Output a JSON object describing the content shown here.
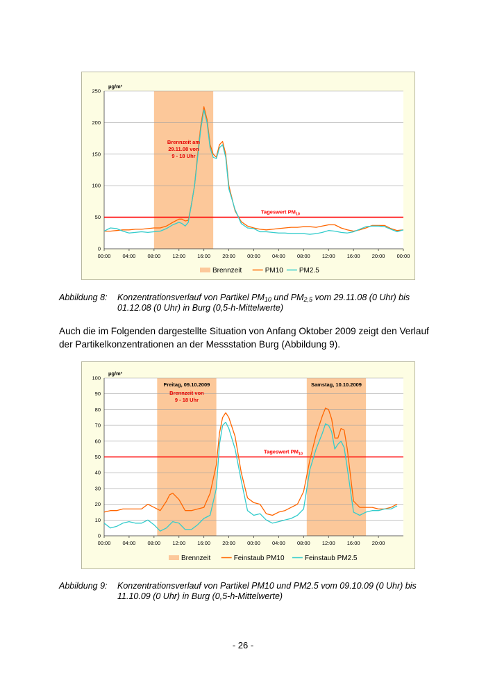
{
  "chart_data": [
    {
      "type": "line",
      "id": "chart1",
      "unit_label": "µg/m³",
      "ylim": [
        0,
        250
      ],
      "yticks": [
        "0",
        "50",
        "100",
        "150",
        "200",
        "250"
      ],
      "x_tick_labels": [
        "00:00",
        "04:00",
        "08:00",
        "12:00",
        "16:00",
        "20:00",
        "00:00",
        "04:00",
        "08:00",
        "12:00",
        "16:00",
        "20:00",
        "00:00"
      ],
      "x_range_hours": [
        0,
        48
      ],
      "band": {
        "from_hour": 8,
        "to_hour": 17.5,
        "color": "#fcc89a",
        "name": "Brennzeit"
      },
      "annotation": "Brennzeit am 29.11.08 von 9 - 18 Uhr",
      "annotation_lines": [
        "Brennzeit am",
        "29.11.08 von",
        "9 - 18 Uhr"
      ],
      "threshold": {
        "value": 50,
        "label": "Tageswert PM",
        "label_sub": "10",
        "color": "#ff0000"
      },
      "legend": [
        "Brennzeit",
        "PM10",
        "PM2.5"
      ],
      "series": [
        {
          "name": "PM10",
          "color": "#ff6600",
          "x": [
            0,
            1,
            2,
            3,
            4,
            5,
            6,
            7,
            8,
            9,
            10,
            11,
            12,
            12.5,
            13,
            13.5,
            14,
            14.5,
            15,
            15.5,
            16,
            16.5,
            17,
            17.5,
            18,
            18.5,
            19,
            19.5,
            20,
            21,
            22,
            23,
            24,
            25,
            26,
            27,
            28,
            29,
            30,
            31,
            32,
            33,
            34,
            35,
            36,
            37,
            38,
            39,
            40,
            41,
            42,
            43,
            44,
            45,
            46,
            47,
            48
          ],
          "values": [
            28,
            28,
            29,
            30,
            30,
            31,
            31,
            32,
            33,
            33,
            36,
            42,
            47,
            47,
            44,
            45,
            70,
            100,
            150,
            195,
            225,
            205,
            165,
            150,
            145,
            165,
            170,
            150,
            100,
            60,
            43,
            36,
            33,
            31,
            30,
            31,
            32,
            33,
            34,
            34,
            35,
            35,
            34,
            36,
            38,
            38,
            33,
            30,
            28,
            30,
            33,
            37,
            37,
            37,
            32,
            29,
            30
          ]
        },
        {
          "name": "PM2.5",
          "color": "#33cccc",
          "x": [
            0,
            1,
            2,
            3,
            4,
            5,
            6,
            7,
            8,
            9,
            10,
            11,
            12,
            12.5,
            13,
            13.5,
            14,
            14.5,
            15,
            15.5,
            16,
            16.5,
            17,
            17.5,
            18,
            18.5,
            19,
            19.5,
            20,
            21,
            22,
            23,
            24,
            25,
            26,
            27,
            28,
            29,
            30,
            31,
            32,
            33,
            34,
            35,
            36,
            37,
            38,
            39,
            40,
            41,
            42,
            43,
            44,
            45,
            46,
            47,
            48
          ],
          "values": [
            28,
            33,
            32,
            28,
            25,
            26,
            27,
            26,
            27,
            28,
            32,
            38,
            42,
            40,
            36,
            42,
            70,
            100,
            145,
            190,
            220,
            200,
            160,
            145,
            143,
            160,
            165,
            145,
            95,
            62,
            40,
            33,
            32,
            27,
            27,
            26,
            25,
            25,
            24,
            24,
            24,
            23,
            24,
            26,
            29,
            28,
            26,
            25,
            27,
            31,
            35,
            36,
            36,
            35,
            31,
            27,
            30
          ]
        }
      ]
    },
    {
      "type": "line",
      "id": "chart2",
      "unit_label": "µg/m³",
      "ylim": [
        0,
        100
      ],
      "yticks": [
        "0",
        "10",
        "20",
        "30",
        "40",
        "50",
        "60",
        "70",
        "80",
        "90",
        "100"
      ],
      "x_tick_labels": [
        "00:00",
        "04:00",
        "08:00",
        "12:00",
        "16:00",
        "20:00",
        "00:00",
        "04:00",
        "08:00",
        "12:00",
        "16:00",
        "20:00"
      ],
      "x_range_hours": [
        0,
        48
      ],
      "bands": [
        {
          "from_hour": 8.5,
          "to_hour": 18,
          "color": "#fcc89a",
          "name": "Brennzeit"
        },
        {
          "from_hour": 32.5,
          "to_hour": 42,
          "color": "#fcc89a",
          "name": "Brennzeit"
        }
      ],
      "band_titles": [
        "Freitag, 09.10.2009",
        "Samstag, 10.10.2009"
      ],
      "annotation_lines": [
        "Brennzeit von",
        "9 - 18 Uhr"
      ],
      "threshold": {
        "value": 50,
        "label": "Tageswert PM",
        "label_sub": "10",
        "color": "#ff0000"
      },
      "legend": [
        "Brennzeit",
        "Feinstaub PM10",
        "Feinstaub PM2.5"
      ],
      "series": [
        {
          "name": "Feinstaub PM10",
          "color": "#ff6600",
          "x": [
            0,
            1,
            2,
            3,
            4,
            5,
            6,
            7,
            8,
            9,
            10,
            10.5,
            11,
            12,
            13,
            14,
            15,
            16,
            17,
            18,
            18.5,
            19,
            19.5,
            20,
            21,
            22,
            23,
            24,
            25,
            26,
            27,
            28,
            29,
            30,
            31,
            32,
            33,
            34,
            35,
            35.5,
            36,
            36.5,
            37,
            37.5,
            38,
            38.5,
            39,
            40,
            41,
            42,
            43,
            44,
            45,
            46,
            47
          ],
          "values": [
            15,
            16,
            16,
            17,
            17,
            17,
            17,
            20,
            18,
            16,
            22,
            26,
            27,
            23,
            16,
            16,
            17,
            18,
            27,
            45,
            65,
            75,
            78,
            75,
            63,
            40,
            24,
            21,
            20,
            14,
            13,
            15,
            16,
            18,
            20,
            28,
            48,
            64,
            76,
            81,
            80,
            74,
            62,
            62,
            68,
            67,
            55,
            22,
            18,
            18,
            18,
            17,
            17,
            18,
            20
          ]
        },
        {
          "name": "Feinstaub PM2.5",
          "color": "#33cccc",
          "x": [
            0,
            1,
            2,
            3,
            4,
            5,
            6,
            7,
            8,
            9,
            10,
            10.5,
            11,
            12,
            13,
            14,
            15,
            16,
            17,
            18,
            18.5,
            19,
            19.5,
            20,
            21,
            22,
            23,
            24,
            25,
            26,
            27,
            28,
            29,
            30,
            31,
            32,
            33,
            34,
            35,
            35.5,
            36,
            36.5,
            37,
            37.5,
            38,
            38.5,
            39,
            40,
            41,
            42,
            43,
            44,
            45,
            46,
            47
          ],
          "values": [
            8,
            5,
            6,
            8,
            9,
            8,
            8,
            10,
            7,
            3,
            5,
            7,
            9,
            8,
            4,
            4,
            7,
            11,
            13,
            30,
            58,
            70,
            72,
            68,
            55,
            35,
            16,
            13,
            14,
            10,
            8,
            9,
            10,
            11,
            13,
            17,
            42,
            55,
            65,
            71,
            70,
            66,
            55,
            58,
            60,
            56,
            43,
            15,
            13,
            15,
            16,
            16,
            17,
            17,
            19
          ]
        }
      ]
    }
  ],
  "caption1": {
    "label": "Abbildung 8:",
    "text_parts": [
      "Konzentrationsverlauf von Partikel PM",
      "10",
      " und PM",
      "2,5",
      " vom 29.11.08 (0 Uhr) bis 01.12.08 (0 Uhr) in Burg (0,5-h-Mittelwerte)"
    ]
  },
  "paragraph": "Auch die im Folgenden dargestellte Situation von Anfang Oktober 2009 zeigt den Verlauf der Partikelkonzentrationen an der Messstation Burg (Abbildung 9).",
  "caption2": {
    "label": "Abbildung 9:",
    "text": "Konzentrationsverlauf von Partikel PM10 und PM2.5 vom 09.10.09 (0 Uhr) bis 11.10.09 (0 Uhr) in Burg (0,5-h-Mittelwerte)"
  },
  "page_number": "- 26 -"
}
